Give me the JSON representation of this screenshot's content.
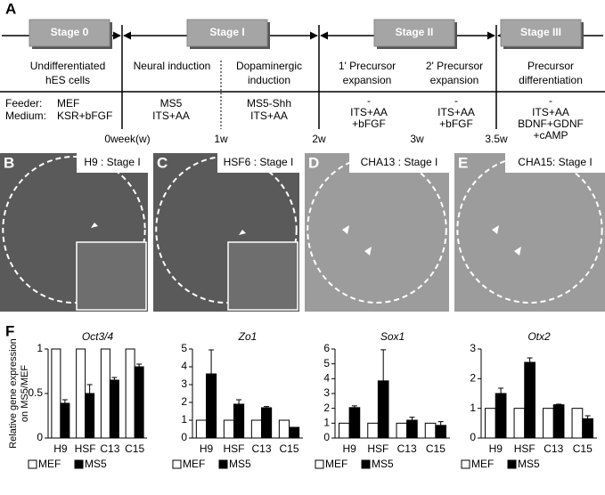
{
  "panel_a": {
    "label": "A",
    "stages": [
      "Stage 0",
      "Stage I",
      "Stage II",
      "Stage III"
    ],
    "steps": [
      [
        "Undifferentiated",
        "hES cells"
      ],
      [
        "Neural induction"
      ],
      [
        "Dopaminergic",
        "induction"
      ],
      [
        "1' Precursor",
        "expansion"
      ],
      [
        "2' Precursor",
        "expansion"
      ],
      [
        "Precursor",
        "differentiation"
      ]
    ],
    "row_labels": [
      "Feeder:",
      "Medium:"
    ],
    "conditions": [
      [
        "MEF",
        "KSR+bFGF"
      ],
      [
        "MS5",
        "ITS+AA"
      ],
      [
        "MS5-Shh",
        "ITS+AA"
      ],
      [
        "-",
        "ITS+AA",
        "+bFGF"
      ],
      [
        "-",
        "ITS+AA",
        "+bFGF"
      ],
      [
        "-",
        "ITS+AA",
        "BDNF+GDNF",
        "+cAMP"
      ]
    ],
    "timeline": [
      "0week(w)",
      "1w",
      "2w",
      "3w",
      "3.5w"
    ]
  },
  "micrographs": [
    {
      "label": "B",
      "caption": "H9 : Stage I"
    },
    {
      "label": "C",
      "caption": "HSF6 : Stage I"
    },
    {
      "label": "D",
      "caption": "CHA13 : Stage I"
    },
    {
      "label": "E",
      "caption": "CHA15: Stage I"
    }
  ],
  "panel_f": {
    "label": "F",
    "y_label": [
      "Relative gene expression",
      "on MS5/MEF"
    ]
  },
  "chart_data": [
    {
      "type": "bar",
      "title": "Oct3/4",
      "categories": [
        "H9",
        "HSF",
        "C13",
        "C15"
      ],
      "ylim": [
        0,
        1
      ],
      "yticks": [
        0,
        0.5,
        1
      ],
      "series": [
        {
          "name": "MEF",
          "color": "#ffffff",
          "values": [
            1,
            1,
            1,
            1
          ]
        },
        {
          "name": "MS5",
          "color": "#000000",
          "values": [
            0.39,
            0.5,
            0.65,
            0.8
          ],
          "errors": [
            0.04,
            0.1,
            0.03,
            0.03
          ]
        }
      ]
    },
    {
      "type": "bar",
      "title": "Zo1",
      "categories": [
        "H9",
        "HSF",
        "C13",
        "C15"
      ],
      "ylim": [
        0,
        5
      ],
      "yticks": [
        0,
        1,
        2,
        3,
        4,
        5
      ],
      "series": [
        {
          "name": "MEF",
          "color": "#ffffff",
          "values": [
            1,
            1,
            1,
            1
          ]
        },
        {
          "name": "MS5",
          "color": "#000000",
          "values": [
            3.6,
            1.9,
            1.7,
            0.6
          ],
          "errors": [
            1.35,
            0.25,
            0.07,
            0
          ]
        }
      ]
    },
    {
      "type": "bar",
      "title": "Sox1",
      "categories": [
        "H9",
        "HSF",
        "C13",
        "C15"
      ],
      "ylim": [
        0,
        6
      ],
      "yticks": [
        0,
        1,
        2,
        3,
        4,
        5,
        6
      ],
      "series": [
        {
          "name": "MEF",
          "color": "#ffffff",
          "values": [
            1,
            1,
            1,
            1
          ]
        },
        {
          "name": "MS5",
          "color": "#000000",
          "values": [
            2.05,
            3.85,
            1.2,
            0.85
          ],
          "errors": [
            0.12,
            2.1,
            0.2,
            0.25
          ]
        }
      ]
    },
    {
      "type": "bar",
      "title": "Otx2",
      "categories": [
        "H9",
        "HSF",
        "C13",
        "C15"
      ],
      "ylim": [
        0,
        3
      ],
      "yticks": [
        0,
        1,
        2,
        3
      ],
      "series": [
        {
          "name": "MEF",
          "color": "#ffffff",
          "values": [
            1,
            1,
            1,
            1
          ]
        },
        {
          "name": "MS5",
          "color": "#000000",
          "values": [
            1.5,
            2.55,
            1.12,
            0.65
          ],
          "errors": [
            0.18,
            0.15,
            0.02,
            0.1
          ]
        }
      ]
    }
  ]
}
